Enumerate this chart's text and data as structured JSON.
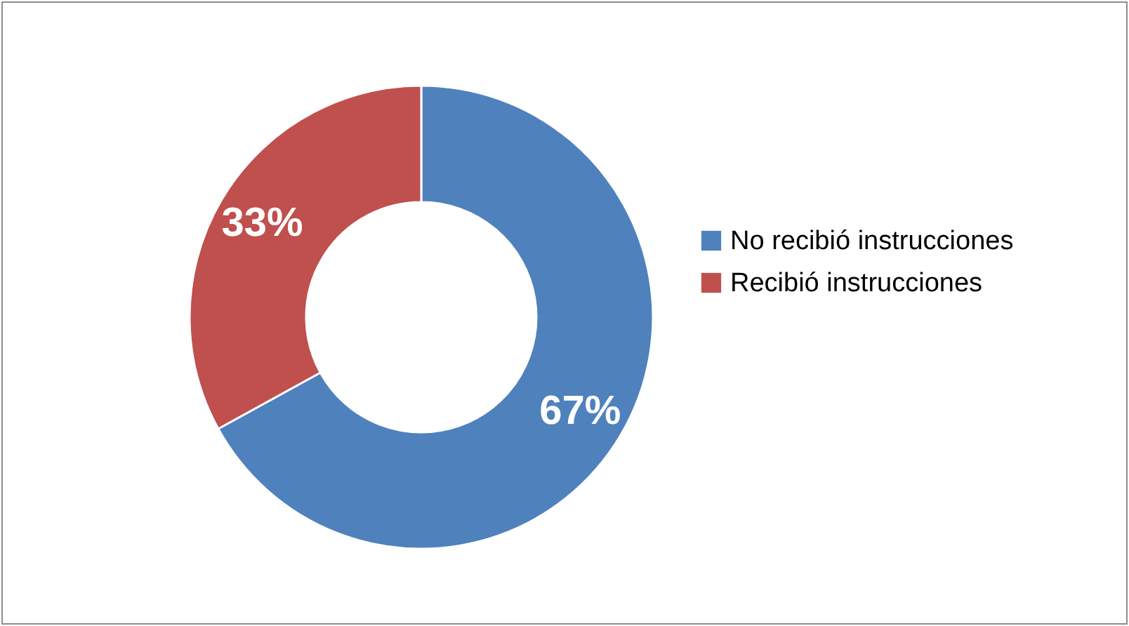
{
  "chart_data": {
    "type": "donut",
    "categories": [
      "No recibió instrucciones",
      "Recibió instrucciones"
    ],
    "values": [
      67,
      33
    ],
    "colors": [
      "#4f81bd",
      "#c0504d"
    ],
    "value_labels": [
      "67%",
      "33%"
    ],
    "legend": "right"
  }
}
